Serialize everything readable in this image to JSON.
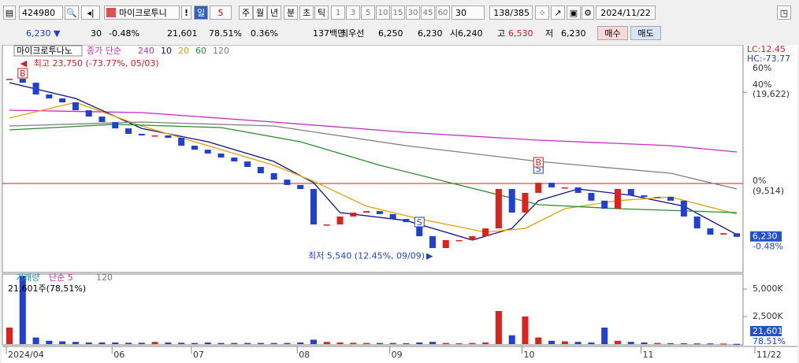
{
  "toolbar": {
    "code": "424980",
    "name": "마이크로투니",
    "alert": "!",
    "period_buttons": [
      "일",
      "5",
      "주",
      "월",
      "년",
      "분",
      "초",
      "틱"
    ],
    "intervals": [
      "1",
      "3",
      "5",
      "10",
      "15",
      "30",
      "45",
      "60"
    ],
    "interval_select": "30",
    "count": "138/385",
    "date": "2024/11/22"
  },
  "quote": {
    "price": "6,230",
    "arrow": "▼",
    "change": "30",
    "change_pct": "-0.48%",
    "volume": "21,601",
    "volume_ratio": "78.51%",
    "turnover": "0.36%",
    "amount": "137백만",
    "best_label": "최우선",
    "ask": "6,250",
    "bid": "6,230",
    "open_label": "시",
    "open": "6,240",
    "high_label": "고",
    "high": "6,530",
    "low_label": "저",
    "low": "6,230",
    "buy": "매수",
    "sell": "매도"
  },
  "chart_data": {
    "type": "candlestick",
    "title": "마이크로투나노",
    "legend_label": "종가 단순",
    "closes": [
      21840,
      21170,
      19280,
      18690,
      18110,
      17010,
      16180,
      15490,
      14730,
      14110,
      13930,
      13930,
      13670,
      12840,
      12440,
      12070,
      11690,
      11330,
      10850,
      10320,
      9810,
      9400,
      9105,
      6870,
      6870,
      7320,
      7550,
      7640,
      7460,
      7180,
      7000,
      6260,
      5700,
      6070,
      6070,
      6260,
      6660,
      9105,
      7550,
      8830,
      9570,
      9220,
      9220,
      8830,
      8300,
      7790,
      9105,
      8660,
      8550,
      8550,
      8300,
      7320,
      6660,
      6340,
      6410,
      6230
    ],
    "volumes": [
      1500,
      6200,
      600,
      300,
      250,
      200,
      150,
      150,
      150,
      120,
      120,
      200,
      150,
      120,
      100,
      150,
      100,
      100,
      100,
      100,
      100,
      100,
      150,
      400,
      200,
      150,
      120,
      100,
      100,
      100,
      80,
      150,
      200,
      100,
      80,
      100,
      150,
      3000,
      800,
      2500,
      600,
      300,
      250,
      200,
      150,
      1500,
      300,
      200,
      150,
      100,
      80,
      80,
      60,
      60,
      50,
      21.601
    ],
    "moving_averages": [
      {
        "name": "240",
        "color": "#c030c0",
        "index": [
          0,
          10,
          20,
          30,
          40,
          50,
          55
        ],
        "values": [
          17010,
          16700,
          15490,
          14280,
          13420,
          12840,
          12220
        ]
      },
      {
        "name": "10",
        "color": "#10108a",
        "index": [
          0,
          5,
          10,
          15,
          20,
          23,
          25,
          30,
          33,
          35,
          38,
          40,
          43,
          47,
          51,
          55
        ],
        "values": [
          21170,
          18690,
          14730,
          13250,
          11330,
          9570,
          7550,
          7090,
          6460,
          6070,
          6660,
          8300,
          9105,
          8660,
          7940,
          6340
        ]
      },
      {
        "name": "20",
        "color": "#e8a000",
        "index": [
          0,
          5,
          10,
          15,
          20,
          23,
          27,
          31,
          36,
          39,
          42,
          46,
          50,
          55
        ],
        "values": [
          15990,
          18110,
          15010,
          12840,
          10990,
          9690,
          7940,
          7180,
          6460,
          6660,
          7790,
          8300,
          8550,
          7460
        ]
      },
      {
        "name": "60",
        "color": "#2e8b2e",
        "index": [
          0,
          8,
          16,
          22,
          28,
          34,
          40,
          46,
          55
        ],
        "values": [
          14550,
          15210,
          14830,
          13250,
          10990,
          9400,
          8040,
          7790,
          7550
        ]
      },
      {
        "name": "120",
        "color": "#808080",
        "index": [
          0,
          10,
          20,
          30,
          40,
          50,
          55
        ],
        "values": [
          15010,
          15490,
          15010,
          12840,
          11330,
          10320,
          9105
        ]
      }
    ],
    "price_ref": {
      "value": 9514,
      "label": "(9,514)",
      "pct": "0%"
    },
    "price_ticks": [
      {
        "value": 19622,
        "label": "(19,622)",
        "pct": "40%"
      }
    ],
    "right_axis": {
      "lc": "LC:12.45",
      "hc": "HC:-73.77",
      "top_pct": "60%"
    },
    "last_price": {
      "value": 6230,
      "label": "6,230",
      "pct": "-0.48%"
    },
    "high_note": {
      "index": 1,
      "value": 23750,
      "label": "최고 23,750 (-73.77%, 05/03)"
    },
    "low_note": {
      "index": 32,
      "value": 5540,
      "label": "최저 5,540 (12.45%, 09/09)"
    },
    "signals": [
      {
        "label": "B",
        "index": 1
      },
      {
        "label": "S",
        "index": 31
      },
      {
        "label": "S",
        "index": 40
      },
      {
        "label": "B",
        "index": 40
      }
    ],
    "volume_legend": {
      "name": "거래량",
      "ma": "단순 5",
      "ma2": "120",
      "current": "21,601주(78,51%)"
    },
    "volume_ticks": [
      {
        "value": 5000,
        "label": "5,000K"
      },
      {
        "value": 2500,
        "label": "2,500K"
      }
    ],
    "last_volume": {
      "label": "21,601",
      "pct": "78.51%"
    },
    "x_labels": [
      {
        "index": 0,
        "label": "2024/04"
      },
      {
        "index": 8,
        "label": "06"
      },
      {
        "index": 14,
        "label": "07"
      },
      {
        "index": 22,
        "label": "08"
      },
      {
        "index": 29,
        "label": "09"
      },
      {
        "index": 39,
        "label": "10"
      },
      {
        "index": 48,
        "label": "11"
      },
      {
        "index": 55,
        "label": "11/22"
      }
    ]
  }
}
